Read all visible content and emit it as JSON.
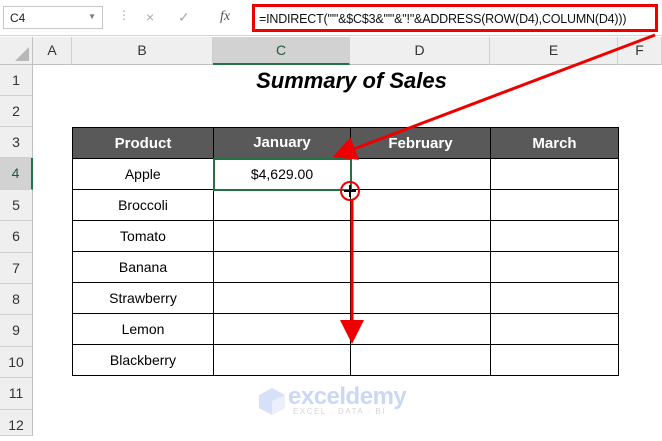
{
  "formula_bar": {
    "name_box": "C4",
    "cancel_icon": "×",
    "enter_icon": "✓",
    "fx_label": "fx",
    "formula": "=INDIRECT(\"'\"&$C$3&\"'\"&\"!\"&ADDRESS(ROW(D4),COLUMN(D4)))"
  },
  "columns": [
    "A",
    "B",
    "C",
    "D",
    "E",
    "F"
  ],
  "rows": [
    "1",
    "2",
    "3",
    "4",
    "5",
    "6",
    "7",
    "8",
    "9",
    "10",
    "11",
    "12"
  ],
  "sheet": {
    "title": "Summary of Sales",
    "headers": [
      "Product",
      "January",
      "February",
      "March"
    ],
    "products": [
      "Apple",
      "Broccoli",
      "Tomato",
      "Banana",
      "Strawberry",
      "Lemon",
      "Blackberry"
    ],
    "c4_value": "$4,629.00"
  },
  "watermark": {
    "name": "exceldemy",
    "tagline": "EXCEL · DATA · BI"
  },
  "colors": {
    "header_fill": "#595959",
    "annotation": "#e00000",
    "selection": "#217346"
  }
}
